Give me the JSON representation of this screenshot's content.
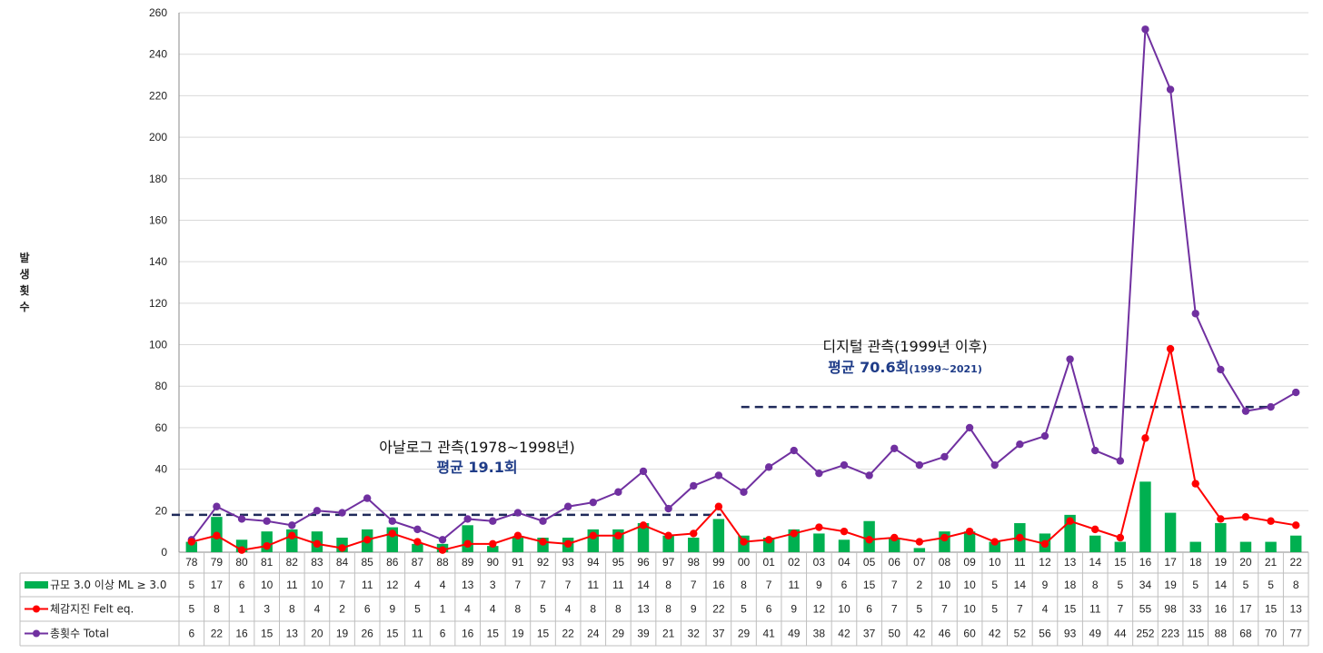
{
  "chart_data": {
    "type": "bar",
    "ylabel": "발생횟수",
    "ylim": [
      0,
      260
    ],
    "yticks": [
      0,
      20,
      40,
      60,
      80,
      100,
      120,
      140,
      160,
      180,
      200,
      220,
      240,
      260
    ],
    "grid": "horizontal",
    "categories": [
      "78",
      "79",
      "80",
      "81",
      "82",
      "83",
      "84",
      "85",
      "86",
      "87",
      "88",
      "89",
      "90",
      "91",
      "92",
      "93",
      "94",
      "95",
      "96",
      "97",
      "98",
      "99",
      "00",
      "01",
      "02",
      "03",
      "04",
      "05",
      "06",
      "07",
      "08",
      "09",
      "10",
      "11",
      "12",
      "13",
      "14",
      "15",
      "16",
      "17",
      "18",
      "19",
      "20",
      "21",
      "22"
    ],
    "series": [
      {
        "name": "규모 3.0 이상 ML ≥ 3.0",
        "kind": "bar",
        "color": "#00b050",
        "values": [
          5,
          17,
          6,
          10,
          11,
          10,
          7,
          11,
          12,
          4,
          4,
          13,
          3,
          7,
          7,
          7,
          11,
          11,
          14,
          8,
          7,
          16,
          8,
          7,
          11,
          9,
          6,
          15,
          7,
          2,
          10,
          10,
          5,
          14,
          9,
          18,
          8,
          5,
          34,
          19,
          5,
          14,
          5,
          5,
          8
        ]
      },
      {
        "name": "체감지진  Felt eq.",
        "kind": "line",
        "color": "#ff0000",
        "values": [
          5,
          8,
          1,
          3,
          8,
          4,
          2,
          6,
          9,
          5,
          1,
          4,
          4,
          8,
          5,
          4,
          8,
          8,
          13,
          8,
          9,
          22,
          5,
          6,
          9,
          12,
          10,
          6,
          7,
          5,
          7,
          10,
          5,
          7,
          4,
          15,
          11,
          7,
          55,
          98,
          33,
          16,
          17,
          15,
          13
        ]
      },
      {
        "name": "총횟수   Total",
        "kind": "line",
        "color": "#7030a0",
        "values": [
          6,
          22,
          16,
          15,
          13,
          20,
          19,
          26,
          15,
          11,
          6,
          16,
          15,
          19,
          15,
          22,
          24,
          29,
          39,
          21,
          32,
          37,
          29,
          41,
          49,
          38,
          42,
          37,
          50,
          42,
          46,
          60,
          42,
          52,
          56,
          93,
          49,
          44,
          252,
          223,
          115,
          88,
          68,
          70,
          77
        ]
      }
    ],
    "reference_lines": [
      {
        "from": "78",
        "to": "99",
        "value": 18
      },
      {
        "from": "00",
        "to": "21",
        "value": 70
      }
    ],
    "annotations": {
      "analog_title": "아날로그 관측(1978~1998년)",
      "analog_avg": "평균 19.1회",
      "digital_title": "디지털 관측(1999년 이후)",
      "digital_avg": "평균 70.6회",
      "digital_period": "(1999~2021)"
    }
  }
}
